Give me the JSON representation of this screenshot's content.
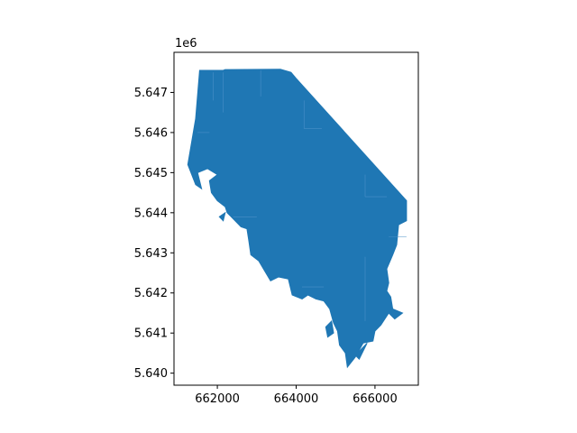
{
  "chart_data": {
    "type": "map",
    "title": "",
    "xlabel": "",
    "ylabel": "",
    "xlim": [
      660900,
      667100
    ],
    "ylim": [
      5639700,
      5648000
    ],
    "x_ticks": [
      662000,
      664000,
      666000
    ],
    "x_tick_labels": [
      "662000",
      "664000",
      "666000"
    ],
    "y_ticks": [
      5640000,
      5641000,
      5642000,
      5643000,
      5644000,
      5645000,
      5646000,
      5647000
    ],
    "y_tick_labels": [
      "5.640",
      "5.641",
      "5.642",
      "5.643",
      "5.644",
      "5.645",
      "5.646",
      "5.647"
    ],
    "y_offset_label": "1e6",
    "fill_color": "#1f77b4",
    "edge_color": "#4a90c8",
    "grid": false,
    "legend": "none",
    "polygon": [
      [
        661550,
        5647550
      ],
      [
        662150,
        5647550
      ],
      [
        662200,
        5647570
      ],
      [
        663600,
        5647580
      ],
      [
        663870,
        5647500
      ],
      [
        664000,
        5647350
      ],
      [
        666800,
        5644300
      ],
      [
        666800,
        5643800
      ],
      [
        666600,
        5643700
      ],
      [
        666550,
        5643200
      ],
      [
        666450,
        5642950
      ],
      [
        666300,
        5642600
      ],
      [
        666350,
        5642250
      ],
      [
        666300,
        5642050
      ],
      [
        666400,
        5641900
      ],
      [
        666450,
        5641600
      ],
      [
        666700,
        5641500
      ],
      [
        666500,
        5641350
      ],
      [
        666350,
        5641500
      ],
      [
        666150,
        5641200
      ],
      [
        666000,
        5641050
      ],
      [
        665950,
        5640800
      ],
      [
        665700,
        5640750
      ],
      [
        665500,
        5640400
      ],
      [
        665300,
        5640150
      ],
      [
        665250,
        5640500
      ],
      [
        665100,
        5640700
      ],
      [
        665050,
        5641050
      ],
      [
        664950,
        5641250
      ],
      [
        664850,
        5641600
      ],
      [
        664700,
        5641800
      ],
      [
        664500,
        5641850
      ],
      [
        664300,
        5641950
      ],
      [
        664150,
        5641850
      ],
      [
        663900,
        5641950
      ],
      [
        663800,
        5642350
      ],
      [
        663550,
        5642400
      ],
      [
        663350,
        5642300
      ],
      [
        663200,
        5642550
      ],
      [
        663050,
        5642800
      ],
      [
        662850,
        5642950
      ],
      [
        662800,
        5643300
      ],
      [
        662750,
        5643600
      ],
      [
        662600,
        5643650
      ],
      [
        662350,
        5643900
      ],
      [
        662250,
        5644000
      ],
      [
        662200,
        5644150
      ],
      [
        662000,
        5644300
      ],
      [
        661850,
        5644500
      ],
      [
        661800,
        5644800
      ],
      [
        662000,
        5644950
      ],
      [
        661750,
        5645100
      ],
      [
        661500,
        5645000
      ],
      [
        661600,
        5644600
      ],
      [
        661450,
        5644700
      ],
      [
        661250,
        5645200
      ],
      [
        661450,
        5646350
      ],
      [
        661550,
        5647550
      ]
    ],
    "islands": [
      [
        [
          664750,
          5641150
        ],
        [
          664900,
          5641300
        ],
        [
          664950,
          5641000
        ],
        [
          664800,
          5640900
        ]
      ],
      [
        [
          665700,
          5640650
        ],
        [
          665800,
          5640750
        ],
        [
          665600,
          5640350
        ],
        [
          665500,
          5640450
        ]
      ],
      [
        [
          662050,
          5643900
        ],
        [
          662200,
          5644000
        ],
        [
          662150,
          5643800
        ]
      ]
    ]
  }
}
